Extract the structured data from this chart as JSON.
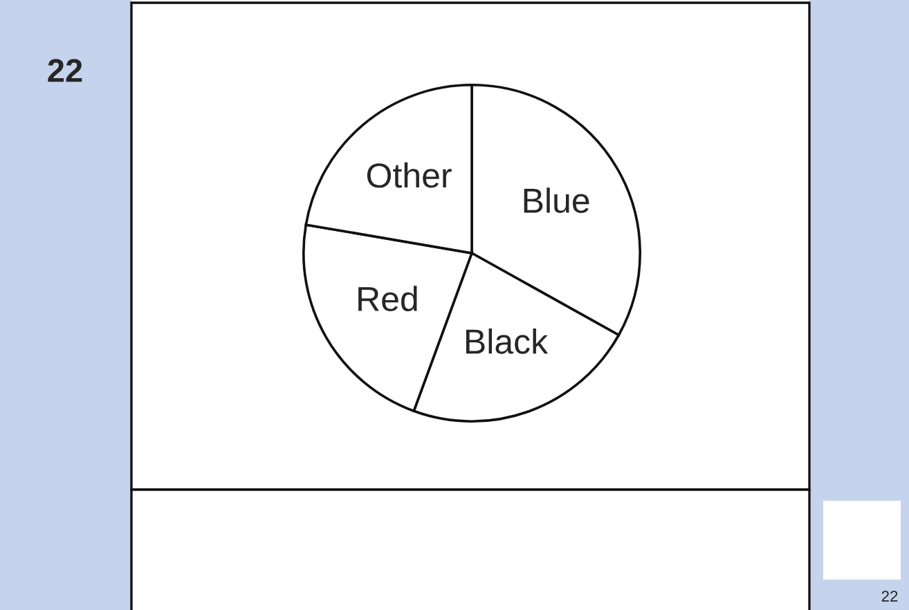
{
  "chart_data": {
    "type": "pie",
    "categories": [
      "Blue",
      "Black",
      "Red",
      "Other"
    ],
    "values": [
      33.1,
      22.5,
      22.1,
      22.3
    ],
    "colors": [
      "#ffffff",
      "#ffffff",
      "#ffffff",
      "#ffffff"
    ],
    "annotations": [
      "22",
      "22"
    ]
  }
}
